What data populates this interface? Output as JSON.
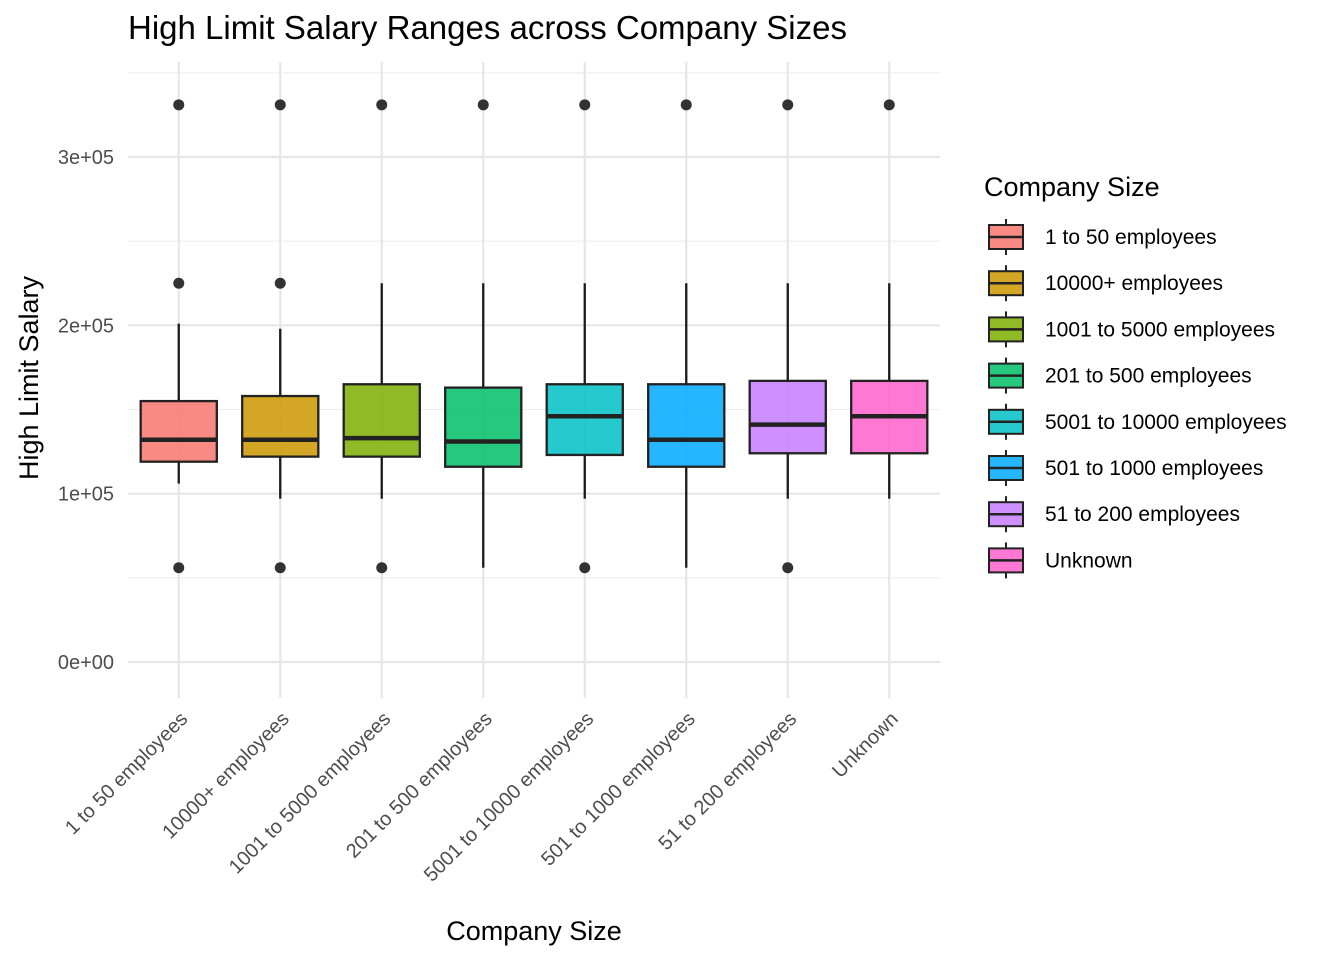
{
  "chart_data": {
    "type": "boxplot",
    "title": "High Limit Salary Ranges across Company Sizes",
    "xlabel": "Company Size",
    "ylabel": "High Limit Salary",
    "ylim": [
      -20000,
      355000
    ],
    "yticks": [
      0,
      100000,
      200000,
      300000
    ],
    "ytick_labels": [
      "0e+00",
      "1e+05",
      "2e+05",
      "3e+05"
    ],
    "grid": true,
    "legend": {
      "title": "Company Size",
      "position": "right"
    },
    "categories": [
      "1 to 50 employees",
      "10000+ employees",
      "1001 to 5000 employees",
      "201 to 500 employees",
      "5001 to 10000 employees",
      "501 to 1000 employees",
      "51 to 200 employees",
      "Unknown"
    ],
    "series": [
      {
        "name": "1 to 50 employees",
        "color": "#F8766D",
        "q1": 119000,
        "median": 132000,
        "q3": 155000,
        "whisker_low": 106000,
        "whisker_high": 201000,
        "outliers": [
          56000,
          225000,
          331000
        ]
      },
      {
        "name": "10000+ employees",
        "color": "#CD9600",
        "q1": 122000,
        "median": 132000,
        "q3": 158000,
        "whisker_low": 97000,
        "whisker_high": 198000,
        "outliers": [
          56000,
          225000,
          331000
        ]
      },
      {
        "name": "1001 to 5000 employees",
        "color": "#7CAE00",
        "q1": 122000,
        "median": 133000,
        "q3": 165000,
        "whisker_low": 97000,
        "whisker_high": 225000,
        "outliers": [
          56000,
          331000
        ]
      },
      {
        "name": "201 to 500 employees",
        "color": "#00BE67",
        "q1": 116000,
        "median": 131000,
        "q3": 163000,
        "whisker_low": 56000,
        "whisker_high": 225000,
        "outliers": [
          331000
        ]
      },
      {
        "name": "5001 to 10000 employees",
        "color": "#00BFC4",
        "q1": 123000,
        "median": 146000,
        "q3": 165000,
        "whisker_low": 97000,
        "whisker_high": 225000,
        "outliers": [
          56000,
          331000
        ]
      },
      {
        "name": "501 to 1000 employees",
        "color": "#00A9FF",
        "q1": 116000,
        "median": 132000,
        "q3": 165000,
        "whisker_low": 56000,
        "whisker_high": 225000,
        "outliers": [
          331000
        ]
      },
      {
        "name": "51 to 200 employees",
        "color": "#C77CFF",
        "q1": 124000,
        "median": 141000,
        "q3": 167000,
        "whisker_low": 97000,
        "whisker_high": 225000,
        "outliers": [
          56000,
          331000
        ]
      },
      {
        "name": "Unknown",
        "color": "#FF61CC",
        "q1": 124000,
        "median": 146000,
        "q3": 167000,
        "whisker_low": 97000,
        "whisker_high": 225000,
        "outliers": [
          331000
        ]
      }
    ]
  }
}
